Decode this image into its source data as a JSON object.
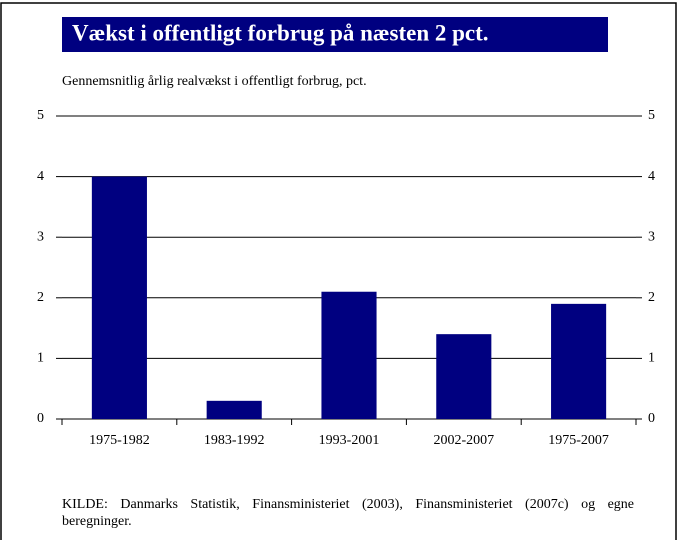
{
  "chart_data": {
    "type": "bar",
    "title": "Vækst i offentligt forbrug på næsten 2 pct.",
    "subtitle": "Gennemsnitlig årlig realvækst i offentligt forbrug, pct.",
    "categories": [
      "1975-1982",
      "1983-1992",
      "1993-2001",
      "2002-2007",
      "1975-2007"
    ],
    "values": [
      4.0,
      0.3,
      2.1,
      1.4,
      1.9
    ],
    "color": "#000080",
    "ylim": [
      0,
      5
    ],
    "yticks": [
      0,
      1,
      2,
      3,
      4,
      5
    ],
    "y2lim": [
      0,
      5
    ],
    "y2ticks": [
      0,
      1,
      2,
      3,
      4,
      5
    ],
    "grid": true,
    "source": "KILDE: Danmarks Statistik, Finansministeriet (2003), Finansministeriet (2007c) og egne beregninger."
  }
}
